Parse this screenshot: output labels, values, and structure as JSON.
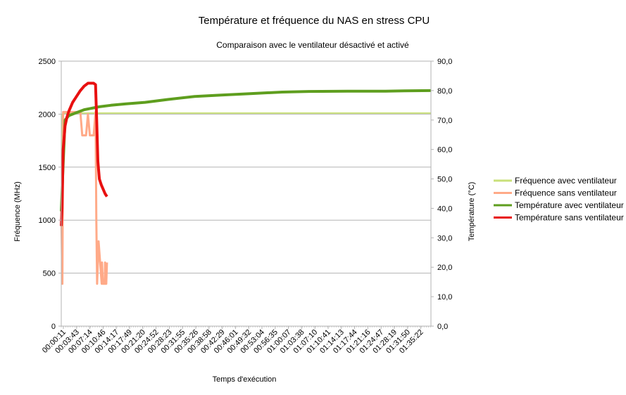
{
  "chart_data": {
    "type": "line",
    "title": "Température et fréquence du NAS en stress CPU",
    "subtitle": "Comparaison avec le ventilateur désactivé et activé",
    "xlabel": "Temps d'exécution",
    "ylabel_left": "Fréquence (MHz)",
    "ylabel_right": "Température (°C)",
    "ylim_left": [
      0,
      2500
    ],
    "ylim_right": [
      0,
      90
    ],
    "yticks_left": [
      "0",
      "500",
      "1000",
      "1500",
      "2000",
      "2500"
    ],
    "yticks_right": [
      "0,0",
      "10,0",
      "20,0",
      "30,0",
      "40,0",
      "50,0",
      "60,0",
      "70,0",
      "80,0",
      "90,0"
    ],
    "x_tick_labels": [
      "00:00:11",
      "00:03:43",
      "00:07:14",
      "00:10:46",
      "00:14:17",
      "00:17:49",
      "00:21:20",
      "00:24:52",
      "00:28:23",
      "00:31:55",
      "00:35:26",
      "00:38:58",
      "00:42:29",
      "00:46:01",
      "00:49:32",
      "00:53:04",
      "00:56:35",
      "01:00:07",
      "01:03:38",
      "01:07:10",
      "01:10:41",
      "01:14:13",
      "01:17:44",
      "01:21:16",
      "01:24:47",
      "01:28:19",
      "01:31:50",
      "01:35:22"
    ],
    "x_unit": "minutes",
    "x_range": [
      0,
      97
    ],
    "grid": true,
    "legend_position": "right",
    "series": [
      {
        "name": "Fréquence avec ventilateur",
        "axis": "left",
        "color": "#c9e07a",
        "x": [
          0,
          0.3,
          1,
          97
        ],
        "y": [
          1000,
          2000,
          2010,
          2010
        ]
      },
      {
        "name": "Fréquence sans ventilateur",
        "axis": "left",
        "color": "#ffaa88",
        "x": [
          0,
          0.3,
          0.5,
          1,
          5,
          5.5,
          6.5,
          7,
          7.5,
          8.5,
          9,
          9.2,
          9.4,
          9.8,
          10.6,
          10.7,
          10.9,
          11.4,
          11.5,
          11.6,
          11.8,
          12.0
        ],
        "y": [
          1100,
          400,
          2020,
          2020,
          2020,
          1800,
          1800,
          2000,
          1800,
          1800,
          2020,
          1000,
          400,
          800,
          400,
          600,
          400,
          400,
          600,
          400,
          400,
          600
        ]
      },
      {
        "name": "Température avec ventilateur",
        "axis": "right",
        "color": "#5e9e1e",
        "x": [
          0,
          0.5,
          1,
          2,
          4,
          6,
          8,
          10,
          13,
          17,
          22,
          28,
          35,
          42,
          50,
          58,
          65,
          75,
          85,
          90,
          97
        ],
        "y": [
          39,
          55,
          70,
          71.5,
          72.5,
          73.5,
          74,
          74.5,
          75,
          75.5,
          76,
          77,
          78,
          78.5,
          79,
          79.5,
          79.7,
          79.8,
          79.8,
          79.9,
          80
        ]
      },
      {
        "name": "Température sans ventilateur",
        "axis": "right",
        "color": "#e81010",
        "x": [
          0,
          0.2,
          0.5,
          1,
          1.5,
          2,
          3,
          4,
          5,
          6,
          7,
          8,
          8.5,
          9,
          9.3,
          9.6,
          10,
          10.5,
          11,
          11.5,
          12
        ],
        "y": [
          34,
          40,
          60,
          68,
          71,
          73,
          76,
          78,
          80,
          81.5,
          82.5,
          82.5,
          82.5,
          82,
          70,
          56,
          50,
          48,
          46.5,
          45,
          44
        ]
      }
    ]
  }
}
